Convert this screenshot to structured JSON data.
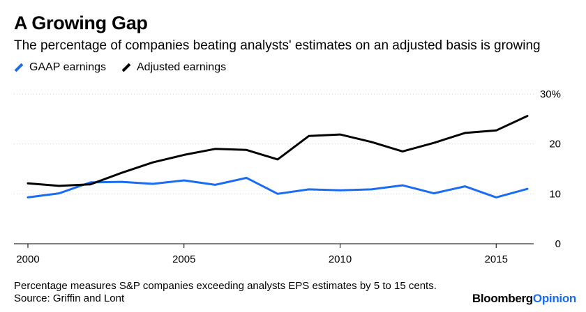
{
  "header": {
    "title": "A Growing Gap",
    "subtitle": "The percentage of companies beating analysts' estimates on an adjusted basis is growing"
  },
  "legend": [
    {
      "label": "GAAP earnings",
      "color": "#1a6cf2"
    },
    {
      "label": "Adjusted earnings",
      "color": "#000000"
    }
  ],
  "footer": {
    "note": "Percentage measures S&P companies exceeding analysts EPS estimates by 5 to 15 cents.",
    "source": "Source: Griffin and Lont",
    "brand_part1": "Bloomberg",
    "brand_part2": "Opinion"
  },
  "chart_data": {
    "type": "line",
    "title": "A Growing Gap",
    "xlabel": "",
    "ylabel": "",
    "xlim": [
      2000,
      2016
    ],
    "ylim": [
      0,
      30
    ],
    "x_ticks": [
      2000,
      2005,
      2010,
      2015
    ],
    "x_tick_labels": [
      "2000",
      "2005",
      "2010",
      "2015"
    ],
    "y_ticks": [
      0,
      10,
      20,
      30
    ],
    "y_tick_labels": [
      "0",
      "10",
      "20",
      "30%"
    ],
    "grid": "horizontal",
    "x": [
      2000,
      2001,
      2002,
      2003,
      2004,
      2005,
      2006,
      2007,
      2008,
      2009,
      2010,
      2011,
      2012,
      2013,
      2014,
      2015,
      2016
    ],
    "series": [
      {
        "name": "GAAP earnings",
        "color": "#1a6cf2",
        "values": [
          9.3,
          10.1,
          12.3,
          12.4,
          12.0,
          12.7,
          11.8,
          13.2,
          10.0,
          10.9,
          10.7,
          10.9,
          11.7,
          10.1,
          11.5,
          9.3,
          11.0
        ]
      },
      {
        "name": "Adjusted earnings",
        "color": "#000000",
        "values": [
          12.1,
          11.6,
          11.9,
          14.2,
          16.3,
          17.8,
          19.0,
          18.8,
          16.9,
          21.6,
          21.9,
          20.4,
          18.5,
          20.2,
          22.2,
          22.7,
          25.6
        ]
      }
    ]
  }
}
